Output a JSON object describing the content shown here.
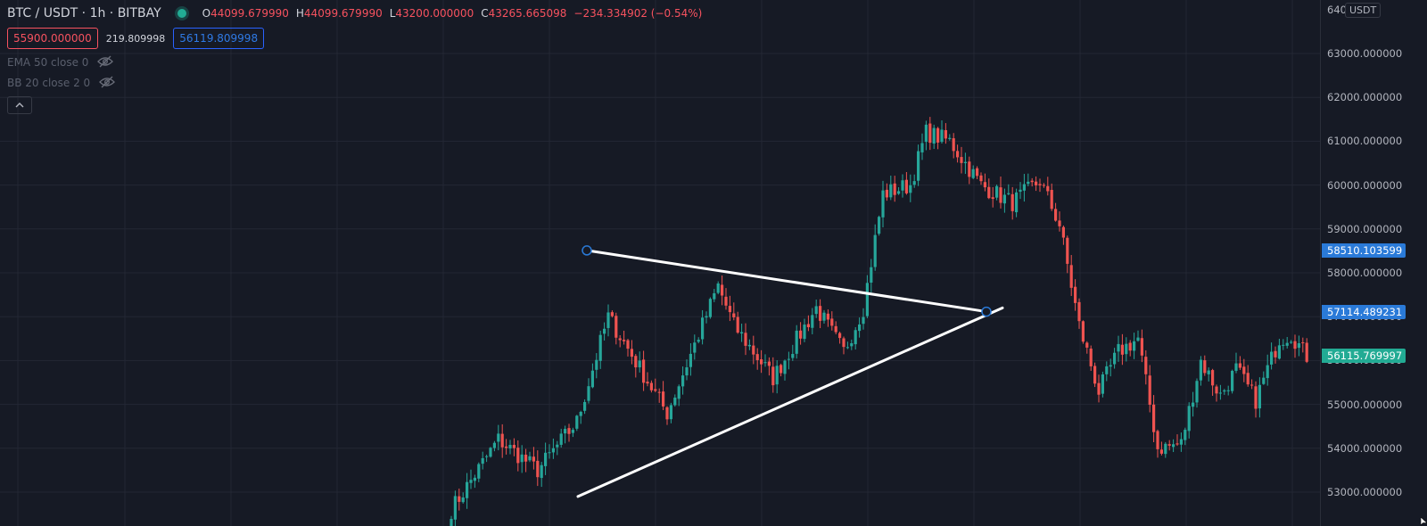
{
  "symbol": {
    "pair": "BTC / USDT",
    "interval": "1h",
    "exchange": "BITBAY",
    "sep": "·"
  },
  "ohlc": {
    "open_label": "O",
    "open": "44099.679990",
    "high_label": "H",
    "high": "44099.679990",
    "low_label": "L",
    "low": "43200.000000",
    "close_label": "C",
    "close": "43265.665098",
    "change": "−234.334902 (−0.54%)"
  },
  "trade": {
    "sell_price": "55900.000000",
    "spread": "219.809998",
    "buy_price": "56119.809998"
  },
  "indicators": [
    {
      "label": "EMA 50 close 0",
      "icon": "eye-off-icon"
    },
    {
      "label": "BB 20 close 2 0",
      "icon": "eye-off-icon"
    }
  ],
  "collapse_icon": "chevron-up-icon",
  "price_axis": {
    "currency": "USDT",
    "top_partial": "640",
    "ticks": [
      "63000.000000",
      "62000.000000",
      "61000.000000",
      "60000.000000",
      "59000.000000",
      "58000.000000",
      "57000.000000",
      "56000.000000",
      "55000.000000",
      "54000.000000",
      "53000.000000"
    ]
  },
  "price_tags": {
    "line_top": "58510.103599",
    "line_end": "57114.489231",
    "last": "56115.769997"
  },
  "colors": {
    "background": "#161a25",
    "up": "#26a69a",
    "down": "#ef5350",
    "drawing": "#ffffff",
    "tag_blue": "#2a7ad8",
    "tag_green": "#22ab94",
    "grid": "#232734"
  },
  "chart_data": {
    "type": "candlestick",
    "symbol": "BTC / USDT",
    "interval": "1h",
    "ylim": [
      52600,
      64000
    ],
    "y_ticks": [
      53000,
      54000,
      55000,
      56000,
      57000,
      58000,
      59000,
      60000,
      61000,
      62000,
      63000
    ],
    "last_price": 56115.77,
    "drawings": [
      {
        "type": "trend-line",
        "from_price": 58510.1,
        "to_price": 57114.49
      },
      {
        "type": "trend-line",
        "from_price": 52900,
        "to_price": 57200
      }
    ],
    "key_levels": [
      {
        "candle": 0,
        "price": 52600
      },
      {
        "candle": 12,
        "price": 54200
      },
      {
        "candle": 22,
        "price": 53500
      },
      {
        "candle": 32,
        "price": 54600
      },
      {
        "candle": 40,
        "price": 57000
      },
      {
        "candle": 55,
        "price": 54800
      },
      {
        "candle": 68,
        "price": 57700
      },
      {
        "candle": 72,
        "price": 56800
      },
      {
        "candle": 82,
        "price": 55600
      },
      {
        "candle": 93,
        "price": 57200
      },
      {
        "candle": 100,
        "price": 56200
      },
      {
        "candle": 105,
        "price": 57200
      },
      {
        "candle": 110,
        "price": 59800
      },
      {
        "candle": 117,
        "price": 60000
      },
      {
        "candle": 121,
        "price": 61200
      },
      {
        "candle": 127,
        "price": 61000
      },
      {
        "candle": 135,
        "price": 60000
      },
      {
        "candle": 143,
        "price": 59600
      },
      {
        "candle": 150,
        "price": 60100
      },
      {
        "candle": 155,
        "price": 59100
      },
      {
        "candle": 160,
        "price": 56800
      },
      {
        "candle": 165,
        "price": 55300
      },
      {
        "candle": 170,
        "price": 56200
      },
      {
        "candle": 175,
        "price": 56500
      },
      {
        "candle": 180,
        "price": 54000
      },
      {
        "candle": 186,
        "price": 54100
      },
      {
        "candle": 191,
        "price": 56000
      },
      {
        "candle": 196,
        "price": 55200
      },
      {
        "candle": 200,
        "price": 55800
      },
      {
        "candle": 205,
        "price": 55100
      },
      {
        "candle": 211,
        "price": 56500
      },
      {
        "candle": 214,
        "price": 56600
      },
      {
        "candle": 218,
        "price": 56100
      }
    ]
  }
}
